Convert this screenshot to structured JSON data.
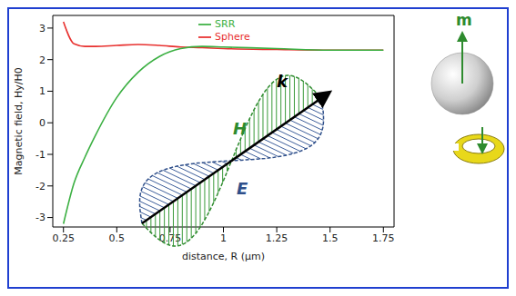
{
  "chart_data": {
    "type": "line",
    "x_label": "distance, R (µm)",
    "y_label": "Magnetic field, Hy/H0",
    "x": [
      0.25,
      0.3,
      0.35,
      0.4,
      0.5,
      0.6,
      0.7,
      0.8,
      0.9,
      1.0,
      1.25,
      1.5,
      1.75
    ],
    "series": [
      {
        "name": "Sphere",
        "color": "#e8312f",
        "values": [
          3.2,
          2.5,
          2.42,
          2.42,
          2.45,
          2.48,
          2.45,
          2.4,
          2.38,
          2.35,
          2.32,
          2.3,
          2.3
        ]
      },
      {
        "name": "SRR",
        "color": "#3cb043",
        "values": [
          -3.2,
          -1.9,
          -1.1,
          -0.4,
          0.8,
          1.6,
          2.1,
          2.35,
          2.42,
          2.4,
          2.35,
          2.3,
          2.3
        ]
      }
    ],
    "xlim": [
      0.2,
      1.8
    ],
    "ylim": [
      -3.3,
      3.4
    ],
    "xticks": [
      0.25,
      0.5,
      0.75,
      1,
      1.25,
      1.5,
      1.75
    ],
    "yticks": [
      -3,
      -2,
      -1,
      0,
      1,
      2,
      3
    ],
    "legend": "upper right",
    "grid": false,
    "annotations": [
      "H",
      "E",
      "k",
      "m"
    ]
  }
}
